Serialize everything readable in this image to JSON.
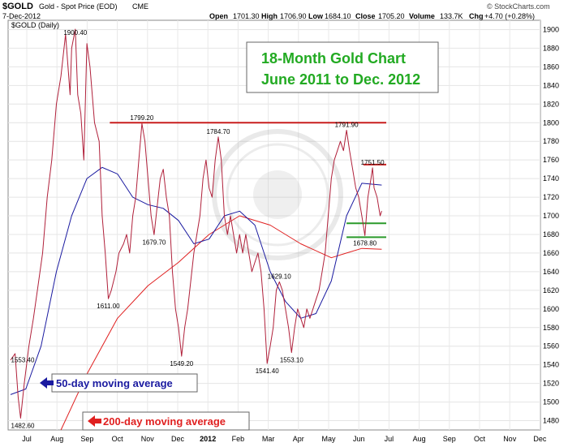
{
  "header": {
    "symbol": "$GOLD",
    "description": "Gold - Spot Price (EOD)",
    "exchange": "CME",
    "date": "7-Dec-2012",
    "open_label": "Open",
    "open": "1701.30",
    "high_label": "High",
    "high": "1706.90",
    "low_label": "Low",
    "low": "1684.10",
    "close_label": "Close",
    "close": "1705.20",
    "volume_label": "Volume",
    "volume": "133.7K",
    "chg_label": "Chg",
    "chg": "+4.70 (+0.28%)",
    "watermark": "© StockCharts.com"
  },
  "chart_data": {
    "type": "line",
    "title": "18-Month Gold Chart",
    "subtitle": "June 2011 to Dec. 2012",
    "series_label": "$GOLD (Daily)",
    "year_label": "2012",
    "months": [
      "Jul",
      "Aug",
      "Sep",
      "Oct",
      "Nov",
      "Dec",
      "2012",
      "Feb",
      "Mar",
      "Apr",
      "May",
      "Jun",
      "Jul",
      "Aug",
      "Sep",
      "Oct",
      "Nov",
      "Dec"
    ],
    "ylim": [
      1470,
      1910
    ],
    "yticks": [
      1480,
      1500,
      1520,
      1540,
      1560,
      1580,
      1600,
      1620,
      1640,
      1660,
      1680,
      1700,
      1720,
      1740,
      1760,
      1780,
      1800,
      1820,
      1840,
      1860,
      1880,
      1900
    ],
    "colors": {
      "price": "#b0203a",
      "ma50": "#1a1aa0",
      "ma200": "#e02020",
      "resistance": "#c81e1e",
      "support": "#2a9a2a",
      "title": "#22aa22"
    },
    "price": [
      [
        0.0,
        1545
      ],
      [
        0.15,
        1552
      ],
      [
        0.25,
        1505
      ],
      [
        0.33,
        1482.6
      ],
      [
        0.45,
        1520
      ],
      [
        0.6,
        1560
      ],
      [
        0.75,
        1590
      ],
      [
        0.9,
        1625
      ],
      [
        1.05,
        1660
      ],
      [
        1.2,
        1720
      ],
      [
        1.35,
        1760
      ],
      [
        1.5,
        1820
      ],
      [
        1.65,
        1850
      ],
      [
        1.8,
        1895
      ],
      [
        1.95,
        1830
      ],
      [
        2.0,
        1880
      ],
      [
        2.12,
        1900.4
      ],
      [
        2.2,
        1830
      ],
      [
        2.3,
        1810
      ],
      [
        2.4,
        1760
      ],
      [
        2.5,
        1885
      ],
      [
        2.6,
        1860
      ],
      [
        2.75,
        1800
      ],
      [
        2.9,
        1780
      ],
      [
        3.0,
        1700
      ],
      [
        3.1,
        1660
      ],
      [
        3.2,
        1611
      ],
      [
        3.3,
        1620
      ],
      [
        3.45,
        1640
      ],
      [
        3.55,
        1660
      ],
      [
        3.7,
        1670
      ],
      [
        3.8,
        1680
      ],
      [
        3.9,
        1660
      ],
      [
        4.0,
        1700
      ],
      [
        4.1,
        1720
      ],
      [
        4.2,
        1760
      ],
      [
        4.3,
        1799.2
      ],
      [
        4.4,
        1780
      ],
      [
        4.5,
        1740
      ],
      [
        4.6,
        1700
      ],
      [
        4.7,
        1679.7
      ],
      [
        4.8,
        1710
      ],
      [
        4.9,
        1740
      ],
      [
        5.0,
        1750
      ],
      [
        5.1,
        1720
      ],
      [
        5.2,
        1700
      ],
      [
        5.3,
        1640
      ],
      [
        5.4,
        1600
      ],
      [
        5.5,
        1580
      ],
      [
        5.6,
        1549.2
      ],
      [
        5.7,
        1580
      ],
      [
        5.8,
        1600
      ],
      [
        5.9,
        1630
      ],
      [
        6.0,
        1660
      ],
      [
        6.1,
        1680
      ],
      [
        6.2,
        1700
      ],
      [
        6.3,
        1740
      ],
      [
        6.4,
        1760
      ],
      [
        6.5,
        1730
      ],
      [
        6.6,
        1720
      ],
      [
        6.7,
        1760
      ],
      [
        6.8,
        1784.7
      ],
      [
        6.9,
        1760
      ],
      [
        7.0,
        1700
      ],
      [
        7.1,
        1680
      ],
      [
        7.2,
        1700
      ],
      [
        7.3,
        1680
      ],
      [
        7.4,
        1660
      ],
      [
        7.5,
        1680
      ],
      [
        7.6,
        1660
      ],
      [
        7.7,
        1680
      ],
      [
        7.8,
        1660
      ],
      [
        7.9,
        1640
      ],
      [
        8.0,
        1650
      ],
      [
        8.1,
        1660
      ],
      [
        8.2,
        1640
      ],
      [
        8.3,
        1600
      ],
      [
        8.4,
        1541.4
      ],
      [
        8.5,
        1560
      ],
      [
        8.6,
        1580
      ],
      [
        8.7,
        1620
      ],
      [
        8.8,
        1629.1
      ],
      [
        8.9,
        1620
      ],
      [
        9.0,
        1600
      ],
      [
        9.1,
        1580
      ],
      [
        9.2,
        1553.1
      ],
      [
        9.3,
        1580
      ],
      [
        9.4,
        1600
      ],
      [
        9.5,
        1590
      ],
      [
        9.6,
        1580
      ],
      [
        9.7,
        1600
      ],
      [
        9.8,
        1590
      ],
      [
        9.9,
        1600
      ],
      [
        10.0,
        1610
      ],
      [
        10.1,
        1620
      ],
      [
        10.2,
        1640
      ],
      [
        10.3,
        1660
      ],
      [
        10.4,
        1700
      ],
      [
        10.5,
        1740
      ],
      [
        10.6,
        1760
      ],
      [
        10.7,
        1770
      ],
      [
        10.8,
        1780
      ],
      [
        10.9,
        1770
      ],
      [
        11.0,
        1791.9
      ],
      [
        11.1,
        1770
      ],
      [
        11.2,
        1750
      ],
      [
        11.3,
        1730
      ],
      [
        11.4,
        1720
      ],
      [
        11.5,
        1700
      ],
      [
        11.6,
        1678.8
      ],
      [
        11.7,
        1720
      ],
      [
        11.8,
        1740
      ],
      [
        11.85,
        1751.5
      ],
      [
        11.9,
        1730
      ],
      [
        12.0,
        1720
      ],
      [
        12.1,
        1700
      ],
      [
        12.15,
        1705.2
      ]
    ],
    "ma50": [
      [
        0.0,
        1508
      ],
      [
        0.5,
        1514
      ],
      [
        1.0,
        1560
      ],
      [
        1.5,
        1640
      ],
      [
        2.0,
        1700
      ],
      [
        2.5,
        1740
      ],
      [
        3.0,
        1752
      ],
      [
        3.5,
        1745
      ],
      [
        4.0,
        1720
      ],
      [
        4.5,
        1712
      ],
      [
        5.0,
        1708
      ],
      [
        5.5,
        1695
      ],
      [
        6.0,
        1670
      ],
      [
        6.5,
        1675
      ],
      [
        7.0,
        1700
      ],
      [
        7.5,
        1705
      ],
      [
        8.0,
        1690
      ],
      [
        8.5,
        1640
      ],
      [
        9.0,
        1608
      ],
      [
        9.5,
        1590
      ],
      [
        10.0,
        1595
      ],
      [
        10.5,
        1630
      ],
      [
        11.0,
        1700
      ],
      [
        11.5,
        1735
      ],
      [
        12.15,
        1733
      ]
    ],
    "ma200": [
      [
        1.65,
        1470
      ],
      [
        2.5,
        1530
      ],
      [
        3.5,
        1590
      ],
      [
        4.5,
        1625
      ],
      [
        5.5,
        1650
      ],
      [
        6.5,
        1680
      ],
      [
        7.5,
        1700
      ],
      [
        8.5,
        1690
      ],
      [
        9.5,
        1670
      ],
      [
        10.5,
        1655
      ],
      [
        11.0,
        1660
      ],
      [
        11.5,
        1665
      ],
      [
        12.15,
        1664
      ]
    ],
    "resistance_lines": [
      {
        "y": 1800,
        "x_start": 3.25,
        "x_end": 12.3
      },
      {
        "y": 1755,
        "x_start": 11.55,
        "x_end": 12.3
      }
    ],
    "support_lines": [
      {
        "y": 1692,
        "x_start": 11.0,
        "x_end": 12.3
      },
      {
        "y": 1677,
        "x_start": 11.0,
        "x_end": 12.3
      }
    ],
    "annotations": [
      {
        "text": "1553.40",
        "x": 0.0,
        "y": 1553.4
      },
      {
        "text": "1482.60",
        "x": 0.33,
        "y": 1482.6
      },
      {
        "text": "1900.40",
        "x": 2.12,
        "y": 1900.4
      },
      {
        "text": "1611.00",
        "x": 3.2,
        "y": 1611
      },
      {
        "text": "1799.20",
        "x": 4.3,
        "y": 1799.2
      },
      {
        "text": "1679.70",
        "x": 4.7,
        "y": 1679.7
      },
      {
        "text": "1549.20",
        "x": 5.6,
        "y": 1549.2
      },
      {
        "text": "1784.70",
        "x": 6.8,
        "y": 1784.7
      },
      {
        "text": "1541.40",
        "x": 8.4,
        "y": 1541.4
      },
      {
        "text": "1629.10",
        "x": 8.8,
        "y": 1629.1
      },
      {
        "text": "1553.10",
        "x": 9.2,
        "y": 1553.1
      },
      {
        "text": "1791.90",
        "x": 11.0,
        "y": 1791.9
      },
      {
        "text": "1751.50",
        "x": 11.85,
        "y": 1751.5
      },
      {
        "text": "1678.80",
        "x": 11.6,
        "y": 1678.8
      }
    ],
    "legend": {
      "ma50_label": "50-day moving average",
      "ma200_label": "200-day moving average"
    }
  }
}
